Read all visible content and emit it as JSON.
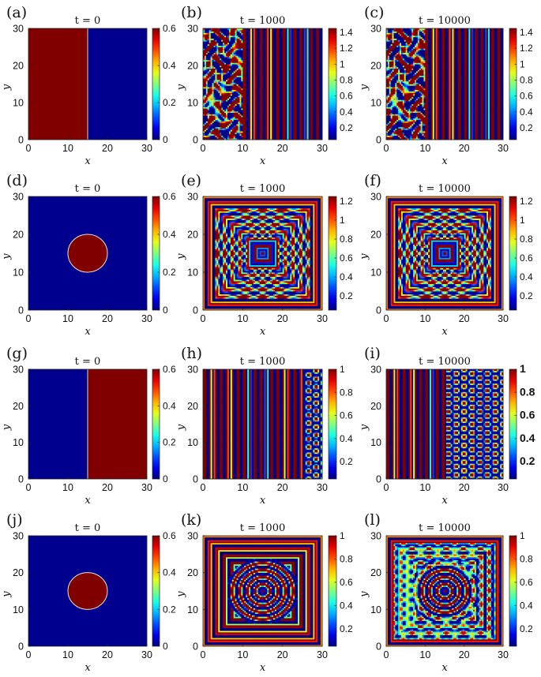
{
  "chart_data": [
    {
      "panel_label": "(a)",
      "time_label": "t = 0",
      "type": "heatmap",
      "pattern": "halfplane-left",
      "xlabel": "x",
      "ylabel": "y",
      "xlim": [
        0,
        30
      ],
      "ylim": [
        0,
        30
      ],
      "x_ticks": [
        "0",
        "10",
        "20",
        "30"
      ],
      "y_ticks": [
        "0",
        "10",
        "20",
        "30"
      ],
      "colorbar": {
        "range": [
          0,
          0.6
        ],
        "ticks": [
          0,
          0.2,
          0.4,
          0.6
        ],
        "tick_labels": [
          "0",
          "0.2",
          "0.4",
          "0.6"
        ]
      }
    },
    {
      "panel_label": "(b)",
      "time_label": "t = 1000",
      "type": "heatmap",
      "pattern": "labyrinth-left-stripes-right",
      "xlabel": "x",
      "ylabel": "y",
      "xlim": [
        0,
        30
      ],
      "ylim": [
        0,
        30
      ],
      "x_ticks": [
        "0",
        "10",
        "20",
        "30"
      ],
      "y_ticks": [
        "0",
        "10",
        "20",
        "30"
      ],
      "colorbar": {
        "range": [
          0.05,
          1.45
        ],
        "ticks": [
          0.2,
          0.4,
          0.6,
          0.8,
          1,
          1.2,
          1.4
        ],
        "tick_labels": [
          "0.2",
          "0.4",
          "0.6",
          "0.8",
          "1",
          "1.2",
          "1.4"
        ]
      }
    },
    {
      "panel_label": "(c)",
      "time_label": "t = 10000",
      "type": "heatmap",
      "pattern": "labyrinth-left-stripes-right",
      "xlabel": "x",
      "ylabel": "y",
      "xlim": [
        0,
        30
      ],
      "ylim": [
        0,
        30
      ],
      "x_ticks": [
        "0",
        "10",
        "20",
        "30"
      ],
      "y_ticks": [
        "0",
        "10",
        "20",
        "30"
      ],
      "colorbar": {
        "range": [
          0.05,
          1.45
        ],
        "ticks": [
          0.2,
          0.4,
          0.6,
          0.8,
          1,
          1.2,
          1.4
        ],
        "tick_labels": [
          "0.2",
          "0.4",
          "0.6",
          "0.8",
          "1",
          "1.2",
          "1.4"
        ]
      }
    },
    {
      "panel_label": "(d)",
      "time_label": "t = 0",
      "type": "heatmap",
      "pattern": "disc",
      "xlabel": "x",
      "ylabel": "y",
      "xlim": [
        0,
        30
      ],
      "ylim": [
        0,
        30
      ],
      "x_ticks": [
        "0",
        "10",
        "20",
        "30"
      ],
      "y_ticks": [
        "0",
        "10",
        "20",
        "30"
      ],
      "colorbar": {
        "range": [
          0,
          0.6
        ],
        "ticks": [
          0,
          0.2,
          0.4,
          0.6
        ],
        "tick_labels": [
          "0",
          "0.2",
          "0.4",
          "0.6"
        ]
      }
    },
    {
      "panel_label": "(e)",
      "time_label": "t = 1000",
      "type": "heatmap",
      "pattern": "concentric-squares",
      "xlabel": "x",
      "ylabel": "y",
      "xlim": [
        0,
        30
      ],
      "ylim": [
        0,
        30
      ],
      "x_ticks": [
        "0",
        "10",
        "20",
        "30"
      ],
      "y_ticks": [
        "0",
        "10",
        "20",
        "30"
      ],
      "colorbar": {
        "range": [
          0.05,
          1.25
        ],
        "ticks": [
          0.2,
          0.4,
          0.6,
          0.8,
          1,
          1.2
        ],
        "tick_labels": [
          "0.2",
          "0.4",
          "0.6",
          "0.8",
          "1",
          "1.2"
        ]
      }
    },
    {
      "panel_label": "(f)",
      "time_label": "t = 10000",
      "type": "heatmap",
      "pattern": "concentric-squares",
      "xlabel": "x",
      "ylabel": "y",
      "xlim": [
        0,
        30
      ],
      "ylim": [
        0,
        30
      ],
      "x_ticks": [
        "0",
        "10",
        "20",
        "30"
      ],
      "y_ticks": [
        "0",
        "10",
        "20",
        "30"
      ],
      "colorbar": {
        "range": [
          0.05,
          1.25
        ],
        "ticks": [
          0.2,
          0.4,
          0.6,
          0.8,
          1,
          1.2
        ],
        "tick_labels": [
          "0.2",
          "0.4",
          "0.6",
          "0.8",
          "1",
          "1.2"
        ]
      }
    },
    {
      "panel_label": "(g)",
      "time_label": "t = 0",
      "type": "heatmap",
      "pattern": "halfplane-right",
      "xlabel": "x",
      "ylabel": "y",
      "xlim": [
        0,
        30
      ],
      "ylim": [
        0,
        30
      ],
      "x_ticks": [
        "0",
        "10",
        "20",
        "30"
      ],
      "y_ticks": [
        "0",
        "10",
        "20",
        "30"
      ],
      "colorbar": {
        "range": [
          0,
          0.6
        ],
        "ticks": [
          0,
          0.2,
          0.4,
          0.6
        ],
        "tick_labels": [
          "0",
          "0.2",
          "0.4",
          "0.6"
        ]
      }
    },
    {
      "panel_label": "(h)",
      "time_label": "t = 1000",
      "type": "heatmap",
      "pattern": "stripes-left-spots-right-narrow",
      "xlabel": "x",
      "ylabel": "y",
      "xlim": [
        0,
        30
      ],
      "ylim": [
        0,
        30
      ],
      "x_ticks": [
        "0",
        "10",
        "20",
        "30"
      ],
      "y_ticks": [
        "0",
        "10",
        "20",
        "30"
      ],
      "colorbar": {
        "range": [
          0.05,
          1.0
        ],
        "ticks": [
          0.2,
          0.4,
          0.6,
          0.8,
          1
        ],
        "tick_labels": [
          "0.2",
          "0.4",
          "0.6",
          "0.8",
          "1"
        ]
      }
    },
    {
      "panel_label": "(i)",
      "time_label": "t = 10000",
      "type": "heatmap",
      "pattern": "stripes-left-spots-right-wide",
      "xlabel": "x",
      "ylabel": "y",
      "xlim": [
        0,
        30
      ],
      "ylim": [
        0,
        30
      ],
      "x_ticks": [
        "0",
        "10",
        "20",
        "30"
      ],
      "y_ticks": [
        "0",
        "10",
        "20",
        "30"
      ],
      "colorbar": {
        "range": [
          0.05,
          1.0
        ],
        "ticks": [
          0.2,
          0.4,
          0.6,
          0.8,
          1
        ],
        "tick_labels": [
          "0.2",
          "0.4",
          "0.6",
          "0.8",
          "1"
        ]
      }
    },
    {
      "panel_label": "(j)",
      "time_label": "t = 0",
      "type": "heatmap",
      "pattern": "disc",
      "xlabel": "x",
      "ylabel": "y",
      "xlim": [
        0,
        30
      ],
      "ylim": [
        0,
        30
      ],
      "x_ticks": [
        "0",
        "10",
        "20",
        "30"
      ],
      "y_ticks": [
        "0",
        "10",
        "20",
        "30"
      ],
      "colorbar": {
        "range": [
          0,
          0.6
        ],
        "ticks": [
          0,
          0.2,
          0.4,
          0.6
        ],
        "tick_labels": [
          "0",
          "0.2",
          "0.4",
          "0.6"
        ]
      }
    },
    {
      "panel_label": "(k)",
      "time_label": "t = 1000",
      "type": "heatmap",
      "pattern": "concentric-rings-grid",
      "xlabel": "x",
      "ylabel": "y",
      "xlim": [
        0,
        30
      ],
      "ylim": [
        0,
        30
      ],
      "x_ticks": [
        "0",
        "10",
        "20",
        "30"
      ],
      "y_ticks": [
        "0",
        "10",
        "20",
        "30"
      ],
      "colorbar": {
        "range": [
          0.05,
          1.0
        ],
        "ticks": [
          0.2,
          0.4,
          0.6,
          0.8,
          1
        ],
        "tick_labels": [
          "0.2",
          "0.4",
          "0.6",
          "0.8",
          "1"
        ]
      }
    },
    {
      "panel_label": "(l)",
      "time_label": "t = 10000",
      "type": "heatmap",
      "pattern": "concentric-rings-spots",
      "xlabel": "x",
      "ylabel": "y",
      "xlim": [
        0,
        30
      ],
      "ylim": [
        0,
        30
      ],
      "x_ticks": [
        "0",
        "10",
        "20",
        "30"
      ],
      "y_ticks": [
        "0",
        "10",
        "20",
        "30"
      ],
      "colorbar": {
        "range": [
          0.05,
          1.0
        ],
        "ticks": [
          0.2,
          0.4,
          0.6,
          0.8,
          1
        ],
        "tick_labels": [
          "0.2",
          "0.4",
          "0.6",
          "0.8",
          "1"
        ]
      }
    }
  ],
  "colors": {
    "low": "#00008f",
    "high": "#800000",
    "colormap": "jet"
  }
}
